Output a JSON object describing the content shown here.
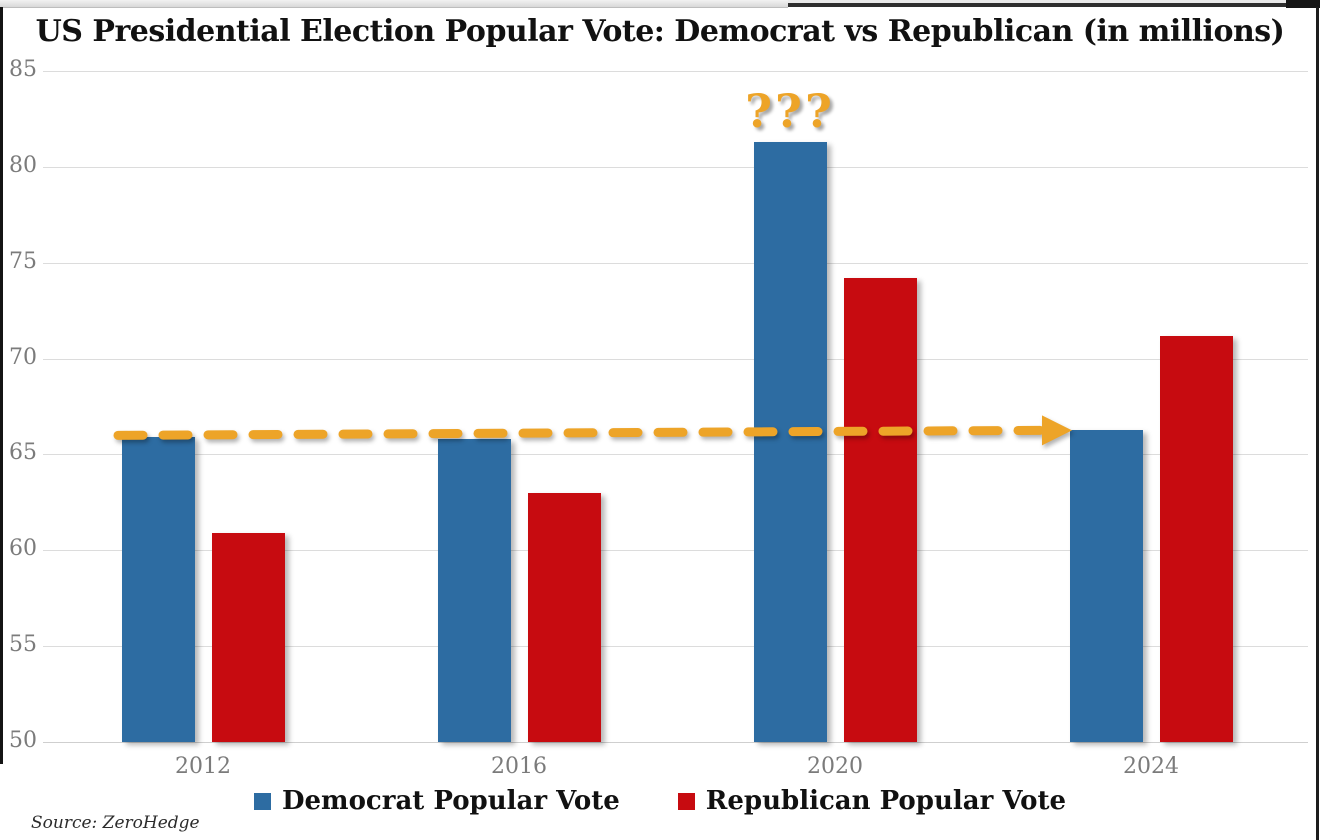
{
  "chart_data": {
    "type": "bar",
    "title": "US Presidential Election Popular Vote: Democrat vs Republican (in millions)",
    "categories": [
      "2012",
      "2016",
      "2020",
      "2024"
    ],
    "series": [
      {
        "name": "Democrat Popular Vote",
        "color": "#2D6CA2",
        "values": [
          65.9,
          65.8,
          81.3,
          66.3
        ]
      },
      {
        "name": "Republican Popular Vote",
        "color": "#C70B10",
        "values": [
          60.9,
          63.0,
          74.2,
          71.2
        ]
      }
    ],
    "xlabel": "",
    "ylabel": "",
    "ylim": [
      50,
      85
    ],
    "yticks": [
      50,
      55,
      60,
      65,
      70,
      75,
      80,
      85
    ],
    "grid": true,
    "legend_position": "bottom",
    "annotations": {
      "question_marks": {
        "text": "???",
        "category": "2020",
        "series": "Democrat Popular Vote",
        "color": "#EDA428"
      },
      "arrow": {
        "type": "dashed-arrow",
        "y_value": 66.1,
        "spans": "2012 Democrat bar to 2024 Democrat bar",
        "color": "#EDA428"
      }
    },
    "source": "Source: ZeroHedge"
  }
}
